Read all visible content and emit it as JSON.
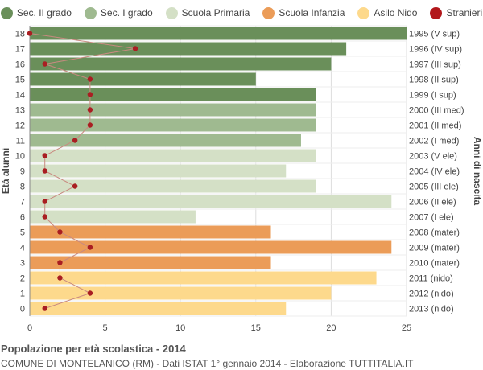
{
  "chart_data": {
    "type": "bar",
    "orientation": "horizontal",
    "title": "Popolazione per età scolastica - 2014",
    "subtitle": "COMUNE DI MONTELANICO (RM) - Dati ISTAT 1° gennaio 2014 - Elaborazione TUTTITALIA.IT",
    "ylabel_left": "Età alunni",
    "ylabel_right": "Anni di nascita",
    "xlim": [
      0,
      25
    ],
    "x_ticks": [
      "0",
      "5",
      "10",
      "15",
      "20",
      "25"
    ],
    "grid": true,
    "legend_position": "top",
    "legend": [
      {
        "label": "Sec. II grado",
        "color": "#6a8f5a"
      },
      {
        "label": "Sec. I grado",
        "color": "#9fba90"
      },
      {
        "label": "Scuola Primaria",
        "color": "#d4e0c6"
      },
      {
        "label": "Scuola Infanzia",
        "color": "#eb9c58"
      },
      {
        "label": "Asilo Nido",
        "color": "#fdd98c"
      },
      {
        "label": "Stranieri",
        "color": "#b2171b"
      }
    ],
    "rows": [
      {
        "age": "18",
        "birth": "1995 (V sup)",
        "value": 25,
        "stranieri": 0,
        "group": 0
      },
      {
        "age": "17",
        "birth": "1996 (IV sup)",
        "value": 21,
        "stranieri": 7,
        "group": 0
      },
      {
        "age": "16",
        "birth": "1997 (III sup)",
        "value": 20,
        "stranieri": 1,
        "group": 0
      },
      {
        "age": "15",
        "birth": "1998 (II sup)",
        "value": 15,
        "stranieri": 4,
        "group": 0
      },
      {
        "age": "14",
        "birth": "1999 (I sup)",
        "value": 19,
        "stranieri": 4,
        "group": 0
      },
      {
        "age": "13",
        "birth": "2000 (III med)",
        "value": 19,
        "stranieri": 4,
        "group": 1
      },
      {
        "age": "12",
        "birth": "2001 (II med)",
        "value": 19,
        "stranieri": 4,
        "group": 1
      },
      {
        "age": "11",
        "birth": "2002 (I med)",
        "value": 18,
        "stranieri": 3,
        "group": 1
      },
      {
        "age": "10",
        "birth": "2003 (V ele)",
        "value": 19,
        "stranieri": 1,
        "group": 2
      },
      {
        "age": "9",
        "birth": "2004 (IV ele)",
        "value": 17,
        "stranieri": 1,
        "group": 2
      },
      {
        "age": "8",
        "birth": "2005 (III ele)",
        "value": 19,
        "stranieri": 3,
        "group": 2
      },
      {
        "age": "7",
        "birth": "2006 (II ele)",
        "value": 24,
        "stranieri": 1,
        "group": 2
      },
      {
        "age": "6",
        "birth": "2007 (I ele)",
        "value": 11,
        "stranieri": 1,
        "group": 2
      },
      {
        "age": "5",
        "birth": "2008 (mater)",
        "value": 16,
        "stranieri": 2,
        "group": 3
      },
      {
        "age": "4",
        "birth": "2009 (mater)",
        "value": 24,
        "stranieri": 4,
        "group": 3
      },
      {
        "age": "3",
        "birth": "2010 (mater)",
        "value": 16,
        "stranieri": 2,
        "group": 3
      },
      {
        "age": "2",
        "birth": "2011 (nido)",
        "value": 23,
        "stranieri": 2,
        "group": 4
      },
      {
        "age": "1",
        "birth": "2012 (nido)",
        "value": 20,
        "stranieri": 4,
        "group": 4
      },
      {
        "age": "0",
        "birth": "2013 (nido)",
        "value": 17,
        "stranieri": 1,
        "group": 4
      }
    ]
  }
}
